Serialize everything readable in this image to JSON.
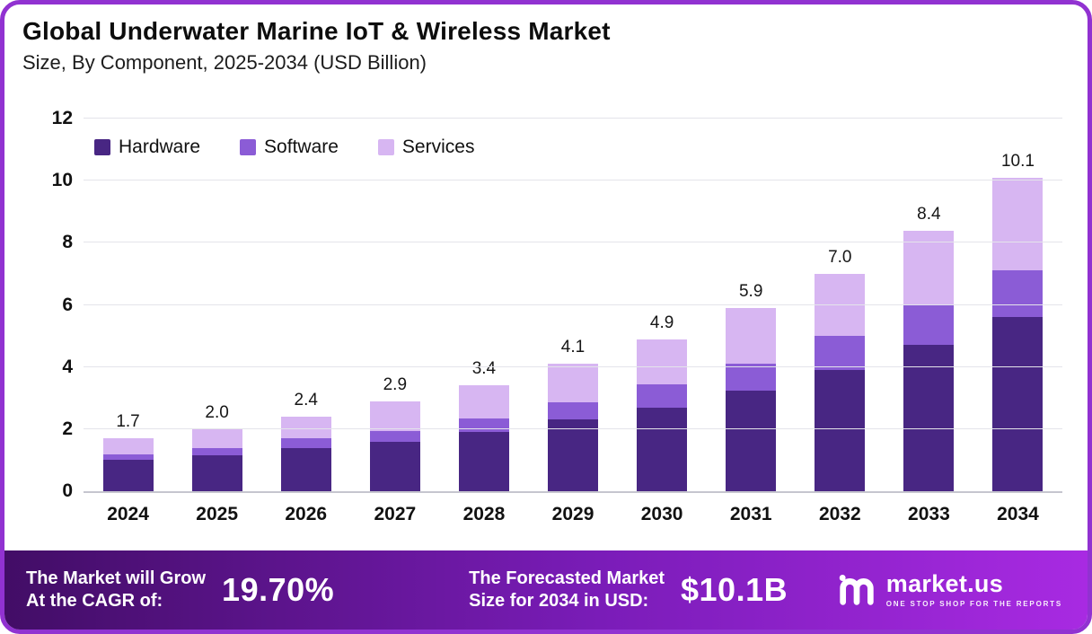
{
  "page": {
    "title": "Global Underwater Marine IoT & Wireless Market",
    "subtitle": "Size, By Component, 2025-2034 (USD Billion)"
  },
  "chart_data": {
    "type": "bar",
    "stacked": true,
    "title": "Global Underwater Marine IoT & Wireless Market Size, By Component, 2025-2034 (USD Billion)",
    "categories": [
      "2024",
      "2025",
      "2026",
      "2027",
      "2028",
      "2029",
      "2030",
      "2031",
      "2032",
      "2033",
      "2034"
    ],
    "series": [
      {
        "name": "Hardware",
        "color": "#482683",
        "values": [
          1.0,
          1.15,
          1.4,
          1.6,
          1.9,
          2.3,
          2.7,
          3.25,
          3.9,
          4.7,
          5.6
        ]
      },
      {
        "name": "Software",
        "color": "#8b5cd6",
        "values": [
          0.2,
          0.25,
          0.3,
          0.35,
          0.45,
          0.55,
          0.75,
          0.85,
          1.1,
          1.3,
          1.5
        ]
      },
      {
        "name": "Services",
        "color": "#d7b6f2",
        "values": [
          0.5,
          0.6,
          0.7,
          0.95,
          1.05,
          1.25,
          1.45,
          1.8,
          2.0,
          2.4,
          3.0
        ]
      }
    ],
    "totals": [
      "1.7",
      "2.0",
      "2.4",
      "2.9",
      "3.4",
      "4.1",
      "4.9",
      "5.9",
      "7.0",
      "8.4",
      "10.1"
    ],
    "xlabel": "",
    "ylabel": "",
    "ylim": [
      0,
      12
    ],
    "yticks": [
      0,
      2,
      4,
      6,
      8,
      10,
      12
    ],
    "grid": true,
    "legend_position": "top-left"
  },
  "footer": {
    "cagr_label": "The Market will Grow\nAt the CAGR of:",
    "cagr_value": "19.70%",
    "forecast_label": "The Forecasted Market\nSize for 2034 in USD:",
    "forecast_value": "$10.1B",
    "brand": "market.us",
    "brand_tagline": "ONE STOP SHOP FOR THE REPORTS"
  },
  "colors": {
    "hardware": "#482683",
    "software": "#8b5cd6",
    "services": "#d7b6f2",
    "card_border": "#9132d1",
    "banner_gradient_start": "#420d66",
    "banner_gradient_end": "#a82ae2"
  }
}
